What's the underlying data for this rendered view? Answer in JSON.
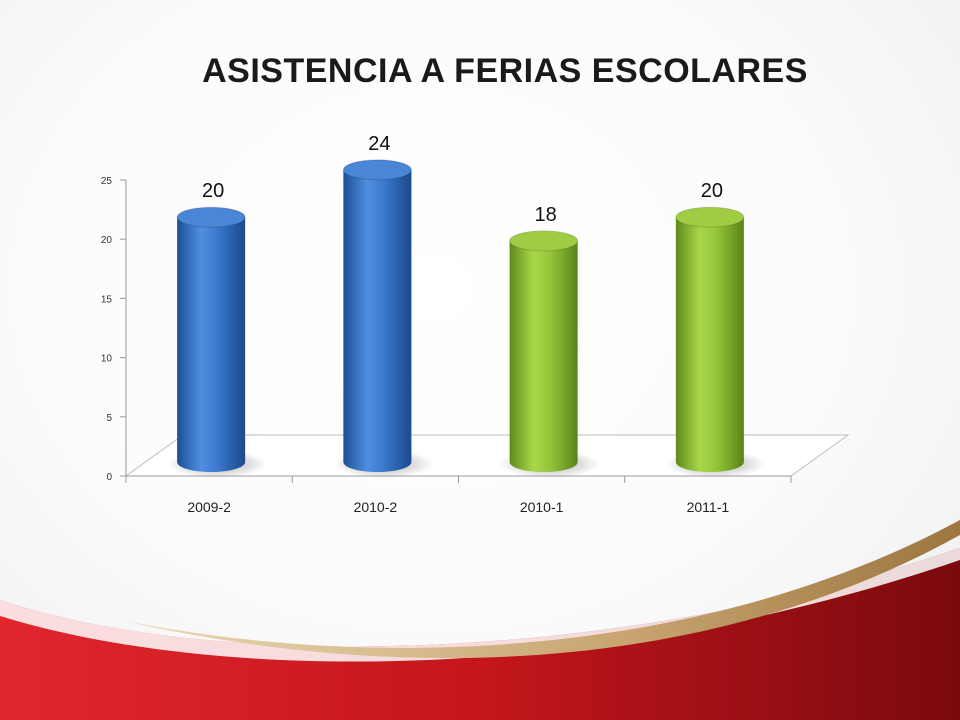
{
  "slide": {
    "title": "ASISTENCIA A FERIAS ESCOLARES"
  },
  "chart_data": {
    "type": "bar",
    "title": "ASISTENCIA A FERIAS ESCOLARES",
    "categories": [
      "2009-2",
      "2010-2",
      "2010-1",
      "2011-1"
    ],
    "values": [
      20,
      24,
      18,
      20
    ],
    "data_labels": [
      "20",
      "24",
      "18",
      "20"
    ],
    "bar_colors": [
      "#2f6fc0",
      "#2f6fc0",
      "#8dbb32",
      "#8dbb32"
    ],
    "ylim": [
      0,
      25
    ],
    "yticks": [
      0,
      5,
      10,
      15,
      20,
      25
    ],
    "ytick_labels": [
      "0",
      "5",
      "10",
      "15",
      "20",
      "25"
    ],
    "xlabel": "",
    "ylabel": "",
    "grid": false,
    "legend": "none"
  }
}
